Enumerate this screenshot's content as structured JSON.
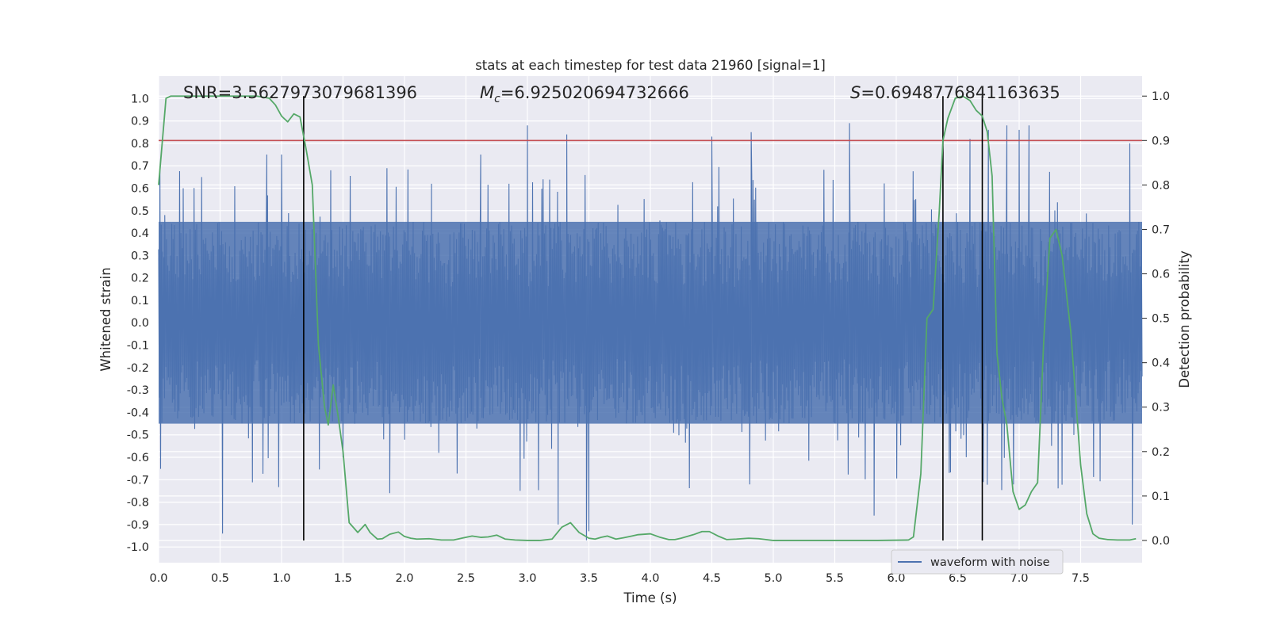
{
  "chart_data": {
    "type": "line",
    "title": "stats at each timestep for test data 21960 [signal=1]",
    "xlabel": "Time (s)",
    "ylabel": "Whitened strain",
    "ylabel_right": "Detection probability",
    "xlim": [
      0.0,
      8.0
    ],
    "ylim": [
      -1.07,
      1.1
    ],
    "ylim_right": [
      -0.05,
      1.045
    ],
    "xticks": [
      0.0,
      0.5,
      1.0,
      1.5,
      2.0,
      2.5,
      3.0,
      3.5,
      4.0,
      4.5,
      5.0,
      5.5,
      6.0,
      6.5,
      7.0,
      7.5
    ],
    "xtick_labels": [
      "0.0",
      "0.5",
      "1.0",
      "1.5",
      "2.0",
      "2.5",
      "3.0",
      "3.5",
      "4.0",
      "4.5",
      "5.0",
      "5.5",
      "6.0",
      "6.5",
      "7.0",
      "7.5"
    ],
    "yticks": [
      1.0,
      0.9,
      0.8,
      0.7,
      0.6,
      0.5,
      0.4,
      0.3,
      0.2,
      0.1,
      0.0,
      -0.1,
      -0.2,
      -0.3,
      -0.4,
      -0.5,
      -0.6,
      -0.7,
      -0.8,
      -0.9,
      -1.0
    ],
    "ytick_labels": [
      "1.0",
      "0.9",
      "0.8",
      "0.7",
      "0.6",
      "0.5",
      "0.4",
      "0.3",
      "0.2",
      "0.1",
      "0.0",
      "-0.1",
      "-0.2",
      "-0.3",
      "-0.4",
      "-0.5",
      "-0.6",
      "-0.7",
      "-0.8",
      "-0.9",
      "-1.0"
    ],
    "yticks_right": [
      1.0,
      0.9,
      0.8,
      0.7,
      0.6,
      0.5,
      0.4,
      0.3,
      0.2,
      0.1,
      0.0
    ],
    "ytick_labels_right": [
      "1.0",
      "0.9",
      "0.8",
      "0.7",
      "0.6",
      "0.5",
      "0.4",
      "0.3",
      "0.2",
      "0.1",
      "0.0"
    ],
    "grid": true,
    "legend": {
      "position": "lower-right",
      "entries": [
        "waveform with noise"
      ]
    },
    "annotations": {
      "snr": "SNR=3.5627973079681396",
      "mc_symbol": "M",
      "mc_subscript": "c",
      "mc_value": "=6.925020694732666",
      "s_symbol": "S",
      "s_value": "=0.6948776841163635"
    },
    "threshold": {
      "axis": "right",
      "value": 0.9,
      "color": "#c44e52"
    },
    "vertical_markers": [
      1.18,
      6.38,
      6.7
    ],
    "series": [
      {
        "name": "waveform with noise",
        "axis": "left",
        "color": "#4c72b0",
        "style": "dense noisy waveform sampled over 0-8 s",
        "envelope_reference": {
          "typical_positive_peak": 0.45,
          "typical_negative_peak": -0.45
        },
        "notable_peaks": [
          [
            0.05,
            0.48
          ],
          [
            0.2,
            0.6
          ],
          [
            0.35,
            0.65
          ],
          [
            0.52,
            -0.94
          ],
          [
            0.88,
            0.75
          ],
          [
            1.0,
            0.75
          ],
          [
            1.4,
            0.68
          ],
          [
            1.88,
            -0.76
          ],
          [
            2.22,
            0.62
          ],
          [
            2.62,
            0.75
          ],
          [
            3.0,
            0.88
          ],
          [
            3.25,
            -0.9
          ],
          [
            3.32,
            0.84
          ],
          [
            3.48,
            -0.97
          ],
          [
            3.5,
            -0.93
          ],
          [
            4.5,
            0.83
          ],
          [
            4.82,
            0.85
          ],
          [
            5.62,
            0.89
          ],
          [
            5.82,
            -0.86
          ],
          [
            6.6,
            0.82
          ],
          [
            6.75,
            0.86
          ],
          [
            6.9,
            0.88
          ],
          [
            7.0,
            0.86
          ],
          [
            7.08,
            0.88
          ],
          [
            7.9,
            0.8
          ],
          [
            7.92,
            -0.9
          ]
        ]
      },
      {
        "name": "",
        "axis": "right",
        "color": "#55a868",
        "x": [
          0.0,
          0.06,
          0.1,
          0.2,
          0.4,
          0.6,
          0.8,
          0.9,
          0.95,
          1.0,
          1.05,
          1.1,
          1.15,
          1.2,
          1.25,
          1.3,
          1.35,
          1.38,
          1.42,
          1.46,
          1.5,
          1.55,
          1.62,
          1.68,
          1.72,
          1.78,
          1.82,
          1.88,
          1.95,
          2.0,
          2.05,
          2.1,
          2.2,
          2.3,
          2.4,
          2.48,
          2.55,
          2.62,
          2.68,
          2.75,
          2.82,
          2.9,
          3.0,
          3.1,
          3.2,
          3.28,
          3.35,
          3.42,
          3.5,
          3.55,
          3.6,
          3.65,
          3.72,
          3.78,
          3.85,
          3.9,
          4.0,
          4.08,
          4.15,
          4.2,
          4.25,
          4.35,
          4.42,
          4.48,
          4.55,
          4.62,
          4.7,
          4.8,
          4.88,
          5.0,
          5.5,
          5.85,
          6.1,
          6.14,
          6.2,
          6.25,
          6.3,
          6.35,
          6.38,
          6.42,
          6.48,
          6.54,
          6.6,
          6.65,
          6.7,
          6.74,
          6.78,
          6.82,
          6.86,
          6.9,
          6.95,
          7.0,
          7.05,
          7.1,
          7.15,
          7.2,
          7.25,
          7.3,
          7.35,
          7.42,
          7.5,
          7.55,
          7.6,
          7.65,
          7.72,
          7.8,
          7.9,
          7.95
        ],
        "values": [
          0.8,
          0.995,
          1.0,
          1.0,
          1.0,
          1.0,
          1.0,
          0.995,
          0.98,
          0.955,
          0.942,
          0.96,
          0.953,
          0.88,
          0.8,
          0.44,
          0.3,
          0.26,
          0.35,
          0.28,
          0.2,
          0.04,
          0.018,
          0.036,
          0.018,
          0.003,
          0.004,
          0.014,
          0.019,
          0.009,
          0.005,
          0.003,
          0.004,
          0.001,
          0.001,
          0.006,
          0.01,
          0.007,
          0.008,
          0.012,
          0.003,
          0.001,
          0.0,
          0.0,
          0.003,
          0.03,
          0.04,
          0.018,
          0.005,
          0.003,
          0.007,
          0.01,
          0.003,
          0.006,
          0.01,
          0.013,
          0.015,
          0.007,
          0.002,
          0.002,
          0.005,
          0.013,
          0.02,
          0.02,
          0.01,
          0.002,
          0.003,
          0.005,
          0.004,
          0.0,
          0.0,
          0.0,
          0.001,
          0.008,
          0.15,
          0.5,
          0.52,
          0.74,
          0.9,
          0.95,
          0.995,
          1.0,
          0.99,
          0.968,
          0.955,
          0.92,
          0.82,
          0.42,
          0.32,
          0.26,
          0.11,
          0.07,
          0.08,
          0.11,
          0.13,
          0.45,
          0.68,
          0.7,
          0.64,
          0.47,
          0.17,
          0.06,
          0.015,
          0.005,
          0.002,
          0.001,
          0.001,
          0.004
        ]
      }
    ]
  }
}
